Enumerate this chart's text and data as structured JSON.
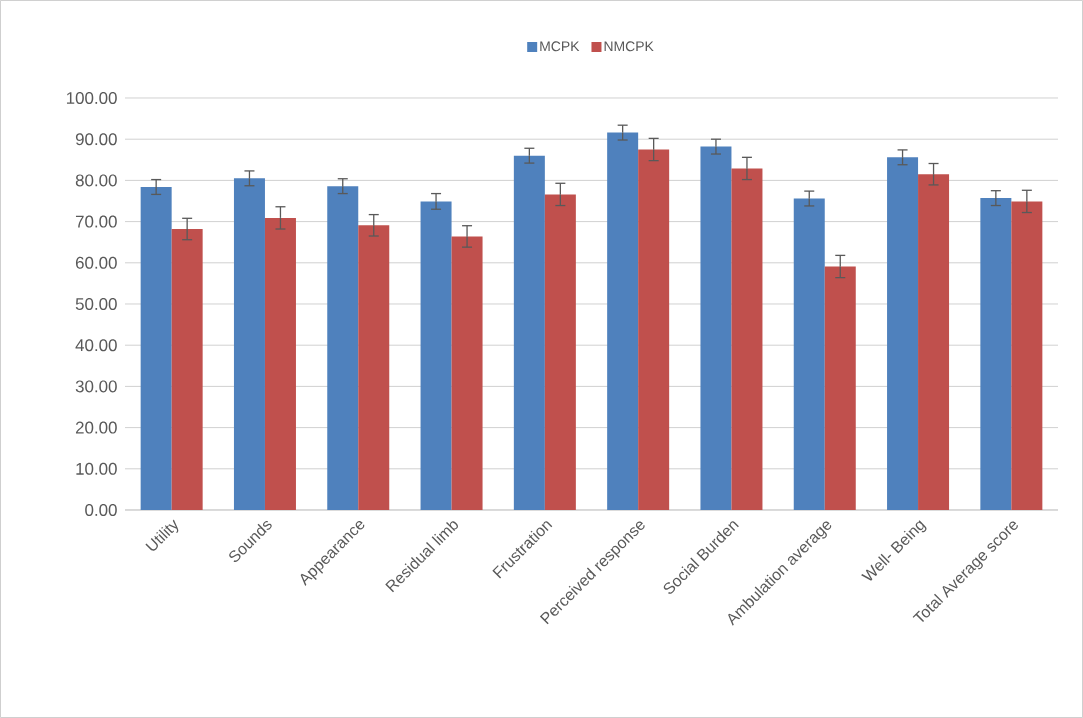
{
  "chart_data": {
    "type": "bar",
    "categories": [
      "Utility",
      "Sounds",
      "Appearance",
      "Residual limb",
      "Frustration",
      "Perceived response",
      "Social Burden",
      "Ambulation average",
      "Well- Being",
      "Total Average score"
    ],
    "series": [
      {
        "name": "MCPK",
        "color": "#4f81bd",
        "values": [
          78.4,
          80.5,
          78.6,
          74.9,
          86.0,
          91.6,
          88.2,
          75.6,
          85.6,
          75.7
        ],
        "errors": [
          1.8,
          1.8,
          1.8,
          1.9,
          1.8,
          1.8,
          1.8,
          1.8,
          1.8,
          1.8
        ]
      },
      {
        "name": "NMCPK",
        "color": "#c0504d",
        "values": [
          68.2,
          70.9,
          69.1,
          66.4,
          76.6,
          87.5,
          82.9,
          59.1,
          81.5,
          74.9
        ],
        "errors": [
          2.6,
          2.7,
          2.6,
          2.6,
          2.7,
          2.7,
          2.7,
          2.7,
          2.6,
          2.7
        ]
      }
    ],
    "ylim": [
      0,
      100
    ],
    "yticks": [
      {
        "value": 0,
        "label": "0.00"
      },
      {
        "value": 10,
        "label": "10.00"
      },
      {
        "value": 20,
        "label": "20.00"
      },
      {
        "value": 30,
        "label": "30.00"
      },
      {
        "value": 40,
        "label": "40.00"
      },
      {
        "value": 50,
        "label": "50.00"
      },
      {
        "value": 60,
        "label": "60.00"
      },
      {
        "value": 70,
        "label": "70.00"
      },
      {
        "value": 80,
        "label": "80.00"
      },
      {
        "value": 90,
        "label": "90.00"
      },
      {
        "value": 100,
        "label": "100.00"
      }
    ],
    "grid": "y",
    "legend": "top"
  }
}
